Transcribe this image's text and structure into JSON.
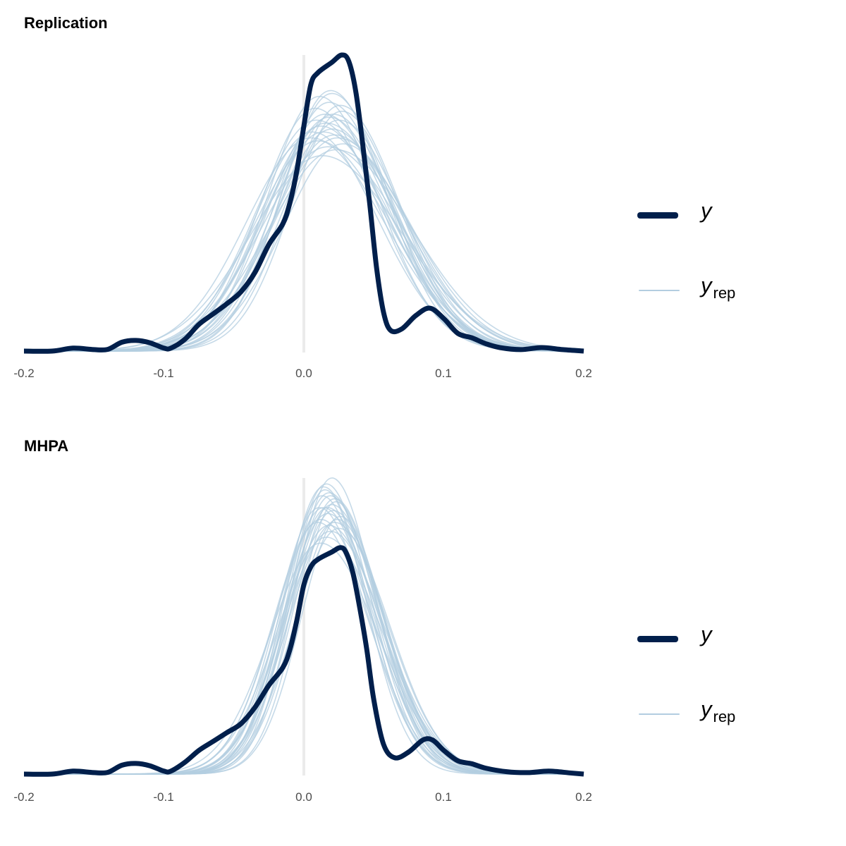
{
  "colors": {
    "y": "#011f4b",
    "y_rep": "#b3cde0",
    "zero_line": "#ebebeb",
    "tick_text": "#4d4d4d"
  },
  "legend": {
    "y_label": "y",
    "y_rep_label": "y",
    "y_rep_subscript": "rep"
  },
  "chart_data": [
    {
      "type": "line",
      "title": "Replication",
      "xlabel": "",
      "ylabel": "",
      "xlim": [
        -0.2,
        0.2
      ],
      "x_ticks": [
        "-0.2",
        "-0.1",
        "0.0",
        "0.1",
        "0.2"
      ],
      "grid": false,
      "vline_at": 0.0,
      "legend_position": "right",
      "series": [
        {
          "name": "y",
          "description": "observed density (normalized height 0-1)",
          "points": [
            [
              -0.2,
              0.0
            ],
            [
              -0.18,
              0.0
            ],
            [
              -0.165,
              0.01
            ],
            [
              -0.15,
              0.005
            ],
            [
              -0.14,
              0.006
            ],
            [
              -0.13,
              0.03
            ],
            [
              -0.12,
              0.036
            ],
            [
              -0.11,
              0.028
            ],
            [
              -0.1,
              0.01
            ],
            [
              -0.095,
              0.01
            ],
            [
              -0.085,
              0.04
            ],
            [
              -0.075,
              0.09
            ],
            [
              -0.065,
              0.125
            ],
            [
              -0.055,
              0.16
            ],
            [
              -0.045,
              0.2
            ],
            [
              -0.035,
              0.265
            ],
            [
              -0.025,
              0.36
            ],
            [
              -0.015,
              0.43
            ],
            [
              -0.01,
              0.5
            ],
            [
              -0.005,
              0.61
            ],
            [
              0.0,
              0.76
            ],
            [
              0.005,
              0.9
            ],
            [
              0.01,
              0.94
            ],
            [
              0.02,
              0.975
            ],
            [
              0.027,
              1.0
            ],
            [
              0.032,
              0.98
            ],
            [
              0.037,
              0.88
            ],
            [
              0.042,
              0.7
            ],
            [
              0.047,
              0.5
            ],
            [
              0.052,
              0.28
            ],
            [
              0.057,
              0.13
            ],
            [
              0.062,
              0.07
            ],
            [
              0.07,
              0.075
            ],
            [
              0.08,
              0.12
            ],
            [
              0.09,
              0.145
            ],
            [
              0.1,
              0.11
            ],
            [
              0.11,
              0.06
            ],
            [
              0.12,
              0.045
            ],
            [
              0.13,
              0.025
            ],
            [
              0.14,
              0.012
            ],
            [
              0.155,
              0.005
            ],
            [
              0.17,
              0.012
            ],
            [
              0.185,
              0.005
            ],
            [
              0.2,
              0.0
            ]
          ]
        },
        {
          "name": "y_rep",
          "description": "posterior predictive density draws (gaussian approximations: mean, sd, peak height)",
          "draws": [
            [
              0.012,
              0.042,
              0.76
            ],
            [
              0.018,
              0.038,
              0.84
            ],
            [
              0.02,
              0.036,
              0.87
            ],
            [
              0.015,
              0.04,
              0.8
            ],
            [
              0.022,
              0.044,
              0.73
            ],
            [
              0.01,
              0.045,
              0.71
            ],
            [
              0.025,
              0.04,
              0.78
            ],
            [
              0.008,
              0.039,
              0.82
            ],
            [
              0.017,
              0.047,
              0.69
            ],
            [
              0.02,
              0.041,
              0.75
            ],
            [
              0.014,
              0.043,
              0.74
            ],
            [
              0.026,
              0.037,
              0.83
            ],
            [
              0.005,
              0.046,
              0.72
            ],
            [
              0.019,
              0.035,
              0.88
            ],
            [
              0.023,
              0.048,
              0.68
            ],
            [
              0.011,
              0.037,
              0.86
            ],
            [
              0.016,
              0.044,
              0.77
            ],
            [
              0.028,
              0.042,
              0.7
            ],
            [
              0.013,
              0.05,
              0.66
            ],
            [
              0.021,
              0.039,
              0.8
            ],
            [
              0.009,
              0.043,
              0.78
            ],
            [
              0.024,
              0.045,
              0.72
            ],
            [
              0.018,
              0.04,
              0.79
            ],
            [
              0.006,
              0.041,
              0.74
            ],
            [
              0.027,
              0.036,
              0.81
            ]
          ]
        }
      ]
    },
    {
      "type": "line",
      "title": "MHPA",
      "xlabel": "",
      "ylabel": "",
      "xlim": [
        -0.2,
        0.2
      ],
      "x_ticks": [
        "-0.2",
        "-0.1",
        "0.0",
        "0.1",
        "0.2"
      ],
      "grid": false,
      "vline_at": 0.0,
      "legend_position": "right",
      "series": [
        {
          "name": "y",
          "description": "observed density (normalized height 0-1 of panel max)",
          "points": [
            [
              -0.2,
              0.0
            ],
            [
              -0.18,
              0.0
            ],
            [
              -0.165,
              0.01
            ],
            [
              -0.15,
              0.005
            ],
            [
              -0.14,
              0.006
            ],
            [
              -0.13,
              0.03
            ],
            [
              -0.12,
              0.036
            ],
            [
              -0.11,
              0.028
            ],
            [
              -0.1,
              0.01
            ],
            [
              -0.095,
              0.01
            ],
            [
              -0.085,
              0.04
            ],
            [
              -0.075,
              0.08
            ],
            [
              -0.065,
              0.11
            ],
            [
              -0.055,
              0.14
            ],
            [
              -0.045,
              0.17
            ],
            [
              -0.035,
              0.225
            ],
            [
              -0.025,
              0.3
            ],
            [
              -0.015,
              0.36
            ],
            [
              -0.01,
              0.42
            ],
            [
              -0.005,
              0.52
            ],
            [
              0.0,
              0.64
            ],
            [
              0.005,
              0.7
            ],
            [
              0.01,
              0.725
            ],
            [
              0.02,
              0.75
            ],
            [
              0.026,
              0.765
            ],
            [
              0.03,
              0.75
            ],
            [
              0.035,
              0.68
            ],
            [
              0.04,
              0.56
            ],
            [
              0.045,
              0.42
            ],
            [
              0.05,
              0.25
            ],
            [
              0.057,
              0.1
            ],
            [
              0.065,
              0.055
            ],
            [
              0.075,
              0.075
            ],
            [
              0.085,
              0.115
            ],
            [
              0.092,
              0.115
            ],
            [
              0.1,
              0.08
            ],
            [
              0.11,
              0.045
            ],
            [
              0.12,
              0.035
            ],
            [
              0.13,
              0.02
            ],
            [
              0.145,
              0.008
            ],
            [
              0.16,
              0.005
            ],
            [
              0.175,
              0.01
            ],
            [
              0.19,
              0.004
            ],
            [
              0.2,
              0.0
            ]
          ]
        },
        {
          "name": "y_rep",
          "description": "posterior predictive density draws (gaussian approximations: mean, sd, peak height)",
          "draws": [
            [
              0.016,
              0.028,
              0.98
            ],
            [
              0.018,
              0.03,
              0.95
            ],
            [
              0.014,
              0.031,
              0.9
            ],
            [
              0.02,
              0.027,
              1.0
            ],
            [
              0.012,
              0.033,
              0.86
            ],
            [
              0.022,
              0.029,
              0.93
            ],
            [
              0.017,
              0.032,
              0.88
            ],
            [
              0.024,
              0.03,
              0.86
            ],
            [
              0.015,
              0.026,
              0.96
            ],
            [
              0.019,
              0.034,
              0.82
            ],
            [
              0.011,
              0.03,
              0.9
            ],
            [
              0.021,
              0.031,
              0.89
            ],
            [
              0.013,
              0.029,
              0.94
            ],
            [
              0.026,
              0.028,
              0.87
            ],
            [
              0.018,
              0.033,
              0.84
            ],
            [
              0.01,
              0.032,
              0.85
            ],
            [
              0.023,
              0.027,
              0.92
            ],
            [
              0.016,
              0.035,
              0.8
            ],
            [
              0.02,
              0.031,
              0.91
            ],
            [
              0.014,
              0.028,
              0.97
            ],
            [
              0.025,
              0.032,
              0.83
            ],
            [
              0.017,
              0.03,
              0.9
            ],
            [
              0.012,
              0.036,
              0.78
            ],
            [
              0.022,
              0.033,
              0.85
            ],
            [
              0.019,
              0.029,
              0.94
            ]
          ]
        }
      ]
    }
  ]
}
